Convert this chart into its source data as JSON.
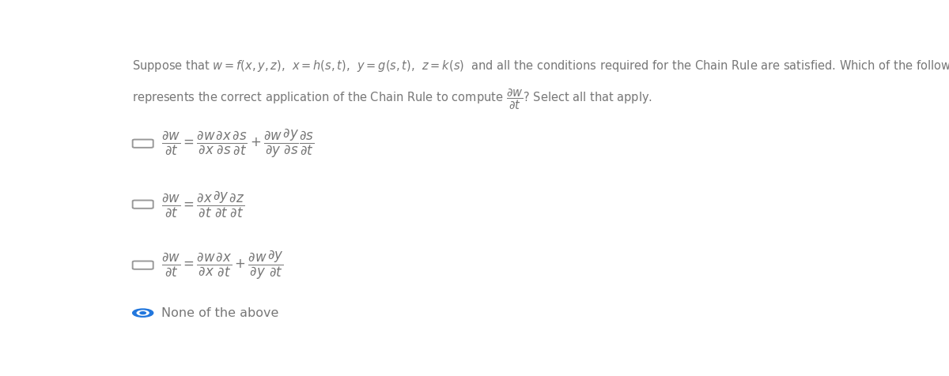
{
  "background_color": "#ffffff",
  "text_color": "#777777",
  "header_line1": "Suppose that $w = f(x, y, z)$,  $x = h(s,t)$,  $y = g(s, t)$,  $z = k(s)$  and all the conditions required for the Chain Rule are satisfied. Which of the following",
  "header_line2_prefix": "represents the correct application of the Chain Rule to compute",
  "header_line2_suffix": "? Select all that apply.",
  "header_fraction": "$\\dfrac{\\partial w}{\\partial t}$",
  "option1_formula": "$\\dfrac{\\partial w}{\\partial t} = \\dfrac{\\partial w}{\\partial x}\\dfrac{\\partial x}{\\partial s}\\dfrac{\\partial s}{\\partial t} + \\dfrac{\\partial w}{\\partial y}\\dfrac{\\partial y}{\\partial s}\\dfrac{\\partial s}{\\partial t}$",
  "option2_formula": "$\\dfrac{\\partial w}{\\partial t} = \\dfrac{\\partial x}{\\partial t}\\dfrac{\\partial y}{\\partial t}\\dfrac{\\partial z}{\\partial t}$",
  "option3_formula": "$\\dfrac{\\partial w}{\\partial t} = \\dfrac{\\partial w}{\\partial x}\\dfrac{\\partial x}{\\partial t} + \\dfrac{\\partial w}{\\partial y}\\dfrac{\\partial y}{\\partial t}$",
  "option4_text": "None of the above",
  "checkbox_color": "#999999",
  "selected_color": "#2277dd",
  "option1_selected": false,
  "option2_selected": false,
  "option3_selected": false,
  "option4_selected": true,
  "figwidth": 12.0,
  "figheight": 4.76,
  "dpi": 100,
  "fontsize_header": 10.5,
  "fontsize_formula": 12,
  "fontsize_none": 11.5
}
